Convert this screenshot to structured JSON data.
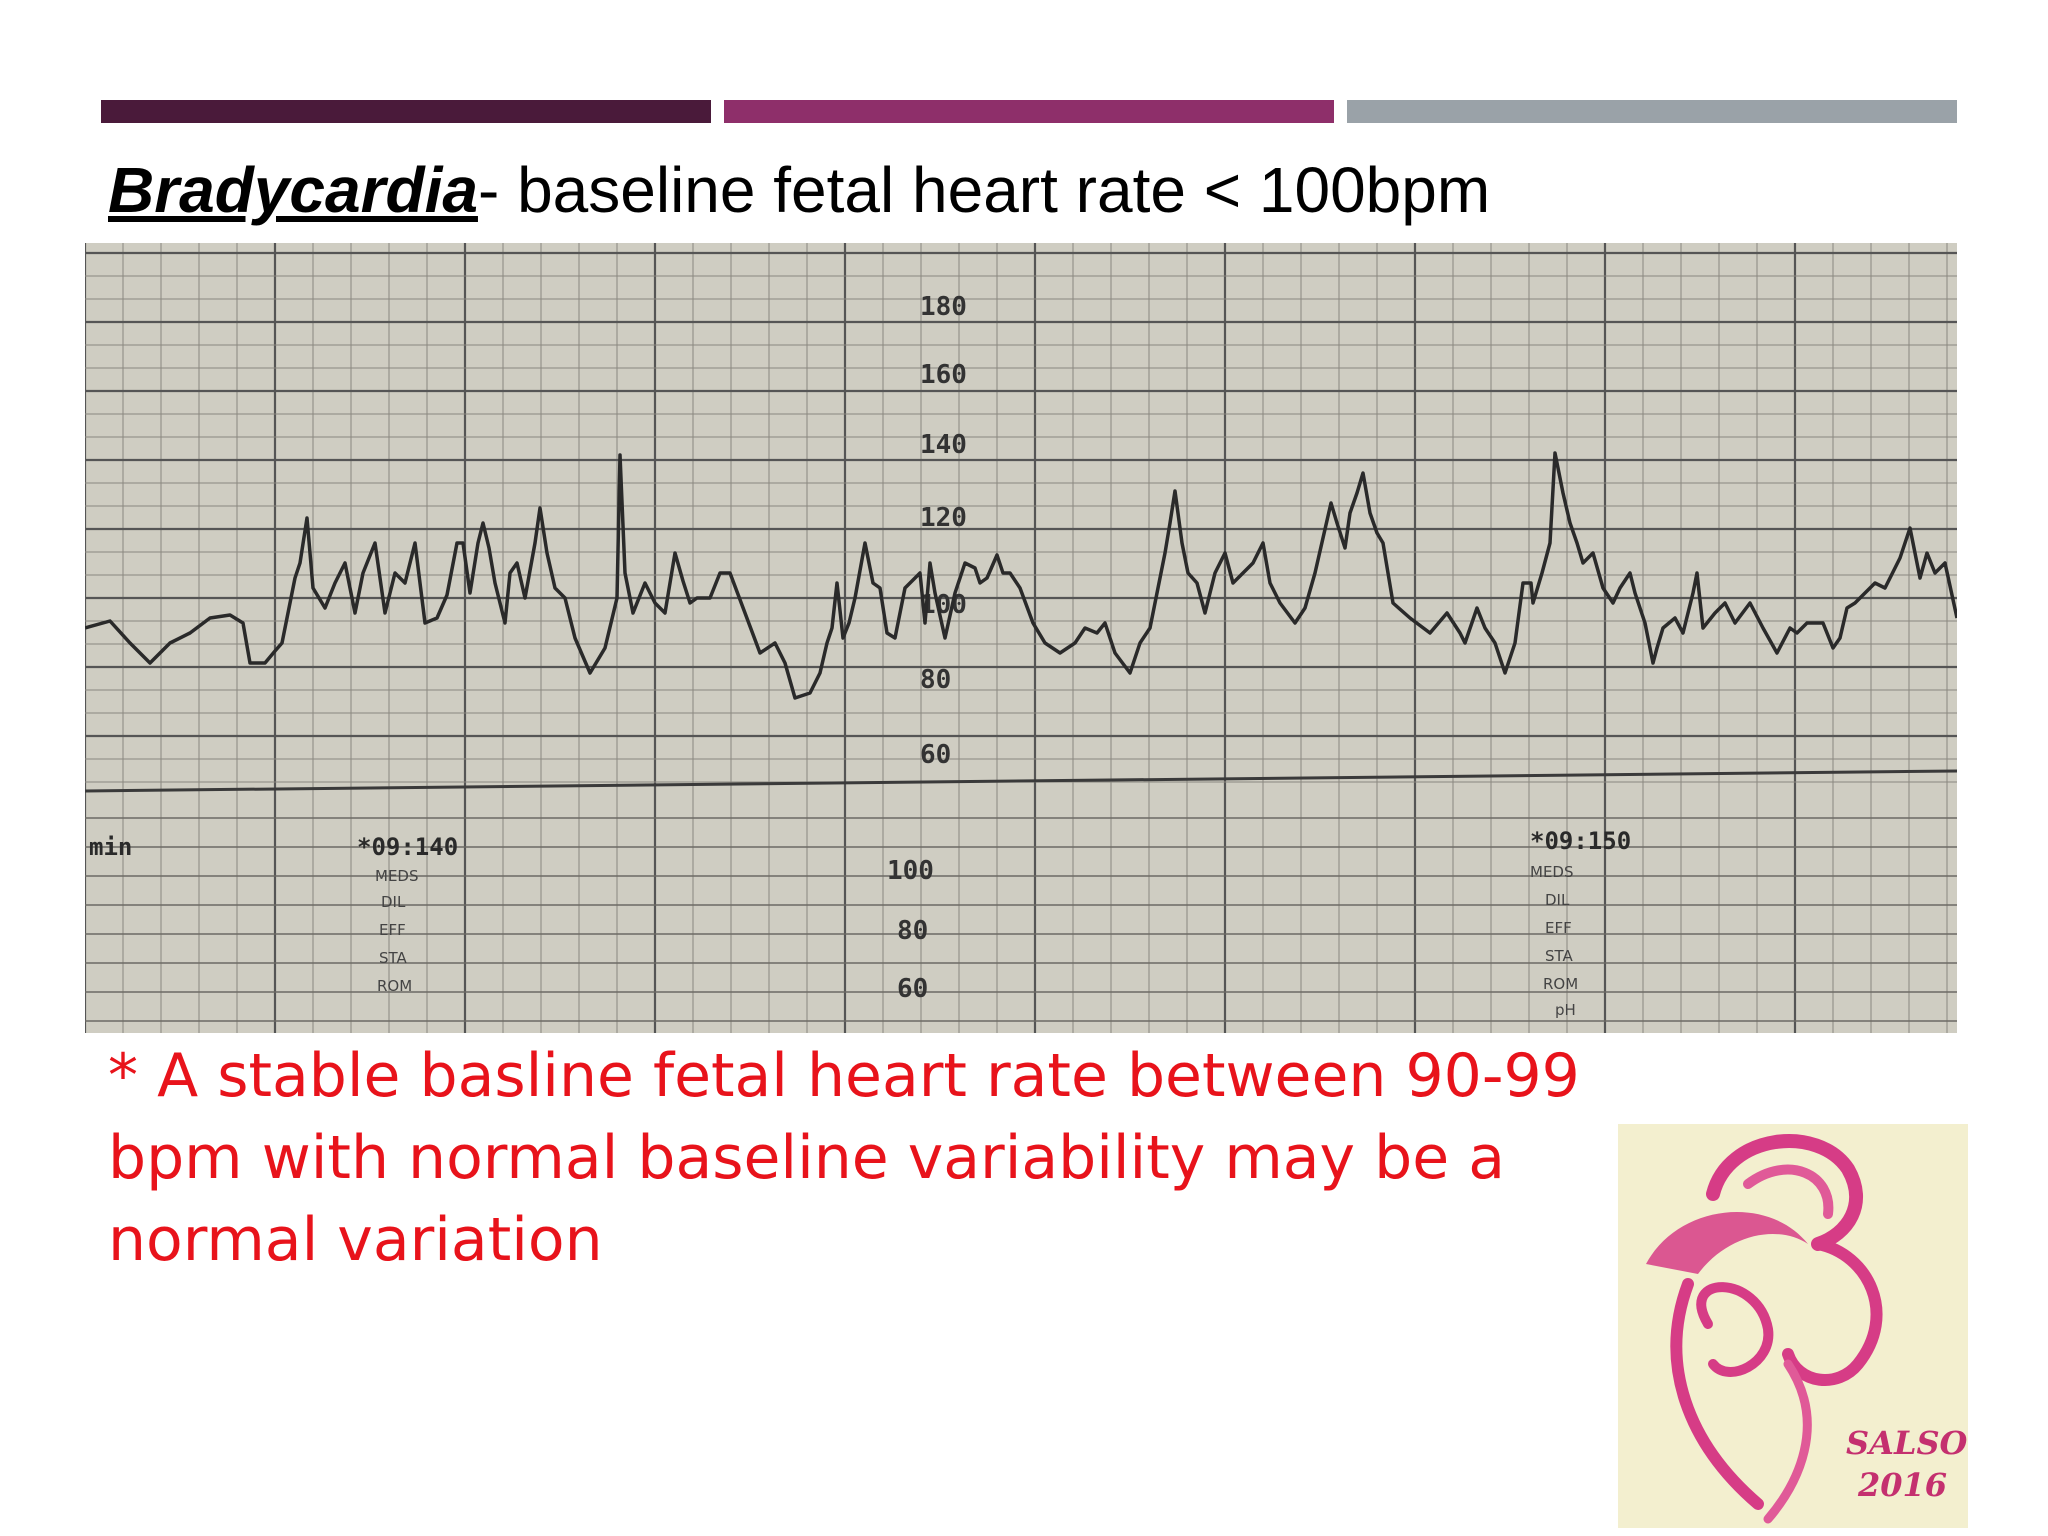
{
  "slide": {
    "title_term": "Bradycardia",
    "title_rest": "- baseline fetal heart rate < 100bpm",
    "note": " * A stable basline fetal heart rate between 90-99 bpm with normal baseline variability may be a normal variation"
  },
  "trace_strip": {
    "upper_scale_labels": [
      "180",
      "160",
      "140",
      "120",
      "100",
      "80",
      "60"
    ],
    "lower_scale_labels": [
      "100",
      "80",
      "60"
    ],
    "speed_label": "min",
    "markers": [
      {
        "code": "*09:140",
        "fields": [
          "MEDS",
          "DIL",
          "EFF",
          "STA",
          "ROM"
        ]
      },
      {
        "code": "*09:150",
        "fields": [
          "MEDS",
          "DIL",
          "EFF",
          "STA",
          "ROM",
          "pH"
        ]
      }
    ]
  },
  "logo": {
    "line1": "SALSO",
    "line2": "2016"
  },
  "colors": {
    "bar1": "#4a1a3a",
    "bar2": "#8e2f6a",
    "bar3": "#9aa2a8",
    "note_text": "#e8131b",
    "logo_pink": "#d63c86",
    "paper": "#cfcdc2"
  }
}
